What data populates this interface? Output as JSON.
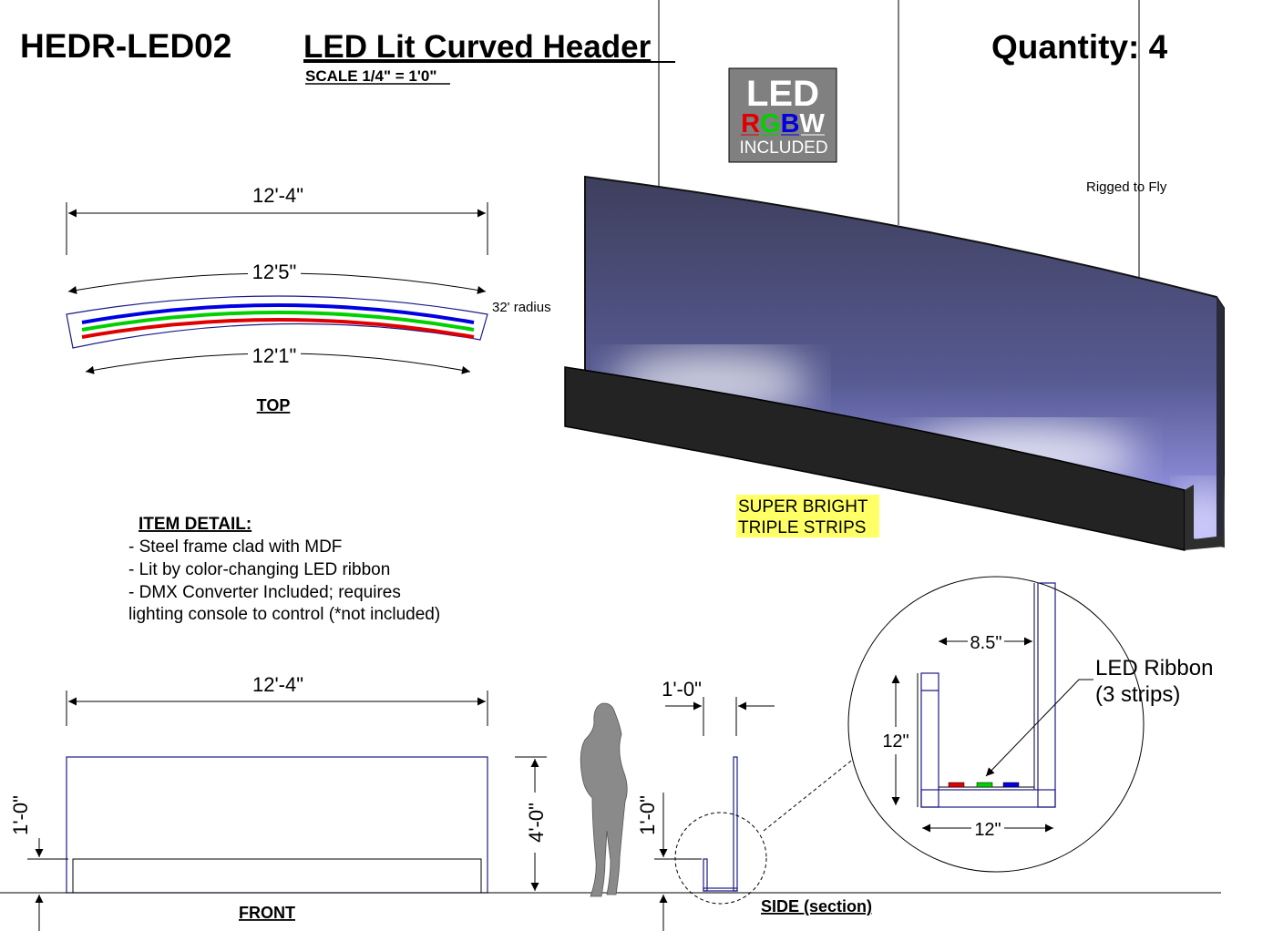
{
  "header": {
    "part_number": "HEDR-LED02",
    "title": "LED Lit Curved Header",
    "scale": "SCALE 1/4\" = 1'0\"",
    "quantity": "Quantity: 4"
  },
  "badge": {
    "line1": "LED",
    "letters": [
      "R",
      "G",
      "B",
      "W"
    ],
    "line3": "INCLUDED",
    "colors": {
      "R": "#e00000",
      "G": "#00d000",
      "B": "#0000e0",
      "W": "#ffffff",
      "background": "#808080"
    }
  },
  "render": {
    "rigging_note": "Rigged to Fly",
    "highlight_line1": "SUPER BRIGHT",
    "highlight_line2": "TRIPLE STRIPS",
    "highlight_color": "#ffff66"
  },
  "top_view": {
    "overall_width": "12'-4\"",
    "outer_arc": "12'5\"",
    "inner_arc": "12'1\"",
    "radius": "32' radius",
    "label": "TOP",
    "strip_colors": [
      "#0000e0",
      "#00d000",
      "#e00000"
    ]
  },
  "item_detail": {
    "heading": "ITEM DETAIL:",
    "lines": [
      "- Steel frame clad with MDF",
      "- Lit by color-changing LED ribbon",
      "- DMX Converter Included; requires",
      "lighting console to control (*not included)"
    ]
  },
  "front_view": {
    "width": "12'-4\"",
    "trough_height": "1'-0\"",
    "total_height": "4'-0\"",
    "label": "FRONT"
  },
  "side_view": {
    "depth": "1'-0\"",
    "trough_height": "1'-0\"",
    "label": "SIDE (section)"
  },
  "detail": {
    "gap": "8.5\"",
    "height": "12\"",
    "width": "12\"",
    "callout_line1": "LED Ribbon",
    "callout_line2": "(3 strips)"
  }
}
